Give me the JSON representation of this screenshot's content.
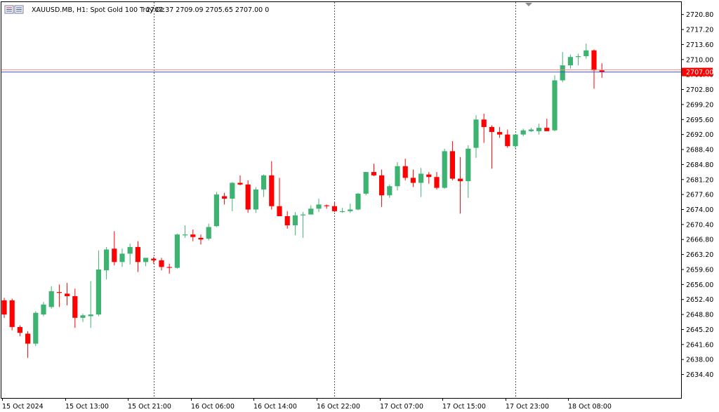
{
  "header": {
    "symbol_info": "XAUUSD.MB, H1:  Spot Gold 100 Troy Oz",
    "ohlc": "2707.37 2709.09 2705.65 2707.00  0"
  },
  "colors": {
    "bull": "#3cb371",
    "bear": "#ff0000",
    "bid_line": "#4b4bd6",
    "ask_line": "#e88",
    "price_tag": "#ff0000",
    "separator": "#555555"
  },
  "icons": {
    "menu": "menu-lines-icon",
    "shift_marker": "triangle-down-icon"
  },
  "chart_data": {
    "type": "candlestick",
    "timeframe": "H1",
    "ylim": [
      2631.8,
      2722.6
    ],
    "y_ticks": [
      "2720.80",
      "2717.20",
      "2713.60",
      "2710.00",
      "2706.40",
      "2702.80",
      "2699.20",
      "2695.60",
      "2692.00",
      "2688.40",
      "2684.80",
      "2681.20",
      "2677.60",
      "2674.00",
      "2670.40",
      "2666.80",
      "2663.20",
      "2659.60",
      "2656.00",
      "2652.40",
      "2648.80",
      "2645.20",
      "2641.60",
      "2638.00",
      "2634.40"
    ],
    "x_labels": [
      "15 Oct 2024",
      "15 Oct 13:00",
      "15 Oct 21:00",
      "16 Oct 06:00",
      "16 Oct 14:00",
      "16 Oct 22:00",
      "17 Oct 07:00",
      "17 Oct 15:00",
      "17 Oct 23:00",
      "18 Oct 08:00"
    ],
    "x_label_bars": [
      0,
      8,
      16,
      24,
      32,
      40,
      48,
      56,
      64,
      72
    ],
    "day_separator_bars": [
      19,
      42,
      65
    ],
    "current_price": 2707.0,
    "current_price_label": "2707.00",
    "ask_price": 2707.5,
    "candles": [
      [
        2652.2,
        2652.8,
        2648.0,
        2648.8
      ],
      [
        2652.2,
        2652.6,
        2645.0,
        2645.8
      ],
      [
        2645.8,
        2646.2,
        2643.6,
        2644.4
      ],
      [
        2644.2,
        2644.8,
        2638.4,
        2641.8
      ],
      [
        2641.8,
        2649.6,
        2641.2,
        2649.2
      ],
      [
        2648.8,
        2651.8,
        2648.4,
        2651.2
      ],
      [
        2650.6,
        2655.6,
        2650.2,
        2654.4
      ],
      [
        2654.2,
        2656.0,
        2650.6,
        2654.0
      ],
      [
        2653.8,
        2656.4,
        2651.0,
        2653.2
      ],
      [
        2653.2,
        2655.0,
        2645.6,
        2648.0
      ],
      [
        2648.0,
        2649.0,
        2647.0,
        2648.6
      ],
      [
        2648.4,
        2656.8,
        2645.6,
        2648.8
      ],
      [
        2648.8,
        2664.2,
        2648.4,
        2659.6
      ],
      [
        2659.4,
        2665.0,
        2657.2,
        2664.4
      ],
      [
        2664.6,
        2668.8,
        2660.6,
        2661.4
      ],
      [
        2661.4,
        2664.6,
        2660.2,
        2663.4
      ],
      [
        2663.4,
        2665.8,
        2660.8,
        2665.0
      ],
      [
        2665.0,
        2666.4,
        2659.0,
        2661.4
      ],
      [
        2661.4,
        2662.4,
        2660.4,
        2662.4
      ],
      [
        2662.2,
        2662.6,
        2661.0,
        2661.8
      ],
      [
        2661.8,
        2662.4,
        2659.4,
        2660.2
      ],
      [
        2660.2,
        2661.0,
        2658.6,
        2660.0
      ],
      [
        2660.0,
        2668.2,
        2659.8,
        2668.0
      ],
      [
        2668.0,
        2670.2,
        2667.2,
        2668.0
      ],
      [
        2668.0,
        2669.2,
        2666.4,
        2667.4
      ],
      [
        2667.2,
        2668.0,
        2665.6,
        2666.8
      ],
      [
        2667.0,
        2670.6,
        2666.6,
        2669.8
      ],
      [
        2670.0,
        2678.2,
        2669.8,
        2677.6
      ],
      [
        2677.2,
        2678.0,
        2675.2,
        2676.6
      ],
      [
        2676.6,
        2680.6,
        2673.6,
        2680.4
      ],
      [
        2680.4,
        2682.2,
        2679.8,
        2680.0
      ],
      [
        2680.0,
        2681.0,
        2673.2,
        2674.0
      ],
      [
        2674.0,
        2679.4,
        2673.2,
        2678.8
      ],
      [
        2678.8,
        2682.4,
        2677.0,
        2682.2
      ],
      [
        2682.2,
        2685.6,
        2674.0,
        2674.8
      ],
      [
        2674.8,
        2681.6,
        2672.4,
        2672.4
      ],
      [
        2672.4,
        2673.6,
        2669.4,
        2670.2
      ],
      [
        2670.2,
        2673.4,
        2667.8,
        2672.6
      ],
      [
        2672.6,
        2673.4,
        2667.2,
        2672.8
      ],
      [
        2672.8,
        2675.0,
        2672.8,
        2674.2
      ],
      [
        2674.2,
        2676.6,
        2673.4,
        2675.2
      ],
      [
        2675.0,
        2675.2,
        2674.2,
        2674.8
      ],
      [
        2674.8,
        2675.6,
        2673.4,
        2673.6
      ],
      [
        2673.6,
        2674.4,
        2673.2,
        2673.6
      ],
      [
        2673.6,
        2675.4,
        2673.2,
        2674.0
      ],
      [
        2674.0,
        2678.0,
        2673.8,
        2677.8
      ],
      [
        2677.8,
        2683.0,
        2677.4,
        2683.0
      ],
      [
        2683.0,
        2685.0,
        2682.0,
        2682.2
      ],
      [
        2682.2,
        2683.6,
        2674.6,
        2677.4
      ],
      [
        2677.4,
        2680.0,
        2676.8,
        2679.6
      ],
      [
        2679.6,
        2685.4,
        2678.6,
        2684.4
      ],
      [
        2684.4,
        2686.2,
        2681.0,
        2681.6
      ],
      [
        2681.6,
        2683.6,
        2679.4,
        2680.4
      ],
      [
        2680.4,
        2684.0,
        2677.0,
        2682.6
      ],
      [
        2682.4,
        2683.0,
        2680.2,
        2681.8
      ],
      [
        2681.8,
        2683.0,
        2678.8,
        2679.2
      ],
      [
        2679.2,
        2688.6,
        2679.0,
        2688.0
      ],
      [
        2688.0,
        2690.4,
        2681.0,
        2681.4
      ],
      [
        2681.4,
        2686.6,
        2673.0,
        2680.8
      ],
      [
        2680.8,
        2689.4,
        2676.8,
        2688.6
      ],
      [
        2688.8,
        2696.6,
        2686.4,
        2695.6
      ],
      [
        2695.6,
        2697.0,
        2690.0,
        2693.8
      ],
      [
        2693.8,
        2694.2,
        2683.8,
        2692.6
      ],
      [
        2692.6,
        2693.8,
        2691.2,
        2692.0
      ],
      [
        2692.0,
        2693.2,
        2688.8,
        2689.2
      ],
      [
        2689.2,
        2692.0,
        2688.6,
        2692.0
      ],
      [
        2692.0,
        2693.4,
        2691.6,
        2693.0
      ],
      [
        2692.8,
        2693.6,
        2692.6,
        2693.2
      ],
      [
        2692.8,
        2694.6,
        2692.0,
        2693.6
      ],
      [
        2693.6,
        2695.8,
        2692.8,
        2692.8
      ],
      [
        2693.0,
        2706.2,
        2692.8,
        2705.0
      ],
      [
        2705.0,
        2711.8,
        2704.6,
        2708.6
      ],
      [
        2708.6,
        2711.2,
        2707.8,
        2710.6
      ],
      [
        2710.6,
        2711.4,
        2708.6,
        2710.8
      ],
      [
        2710.8,
        2713.8,
        2710.2,
        2712.2
      ],
      [
        2712.2,
        2712.4,
        2703.0,
        2707.4
      ],
      [
        2707.4,
        2709.1,
        2705.6,
        2707.0
      ]
    ]
  }
}
